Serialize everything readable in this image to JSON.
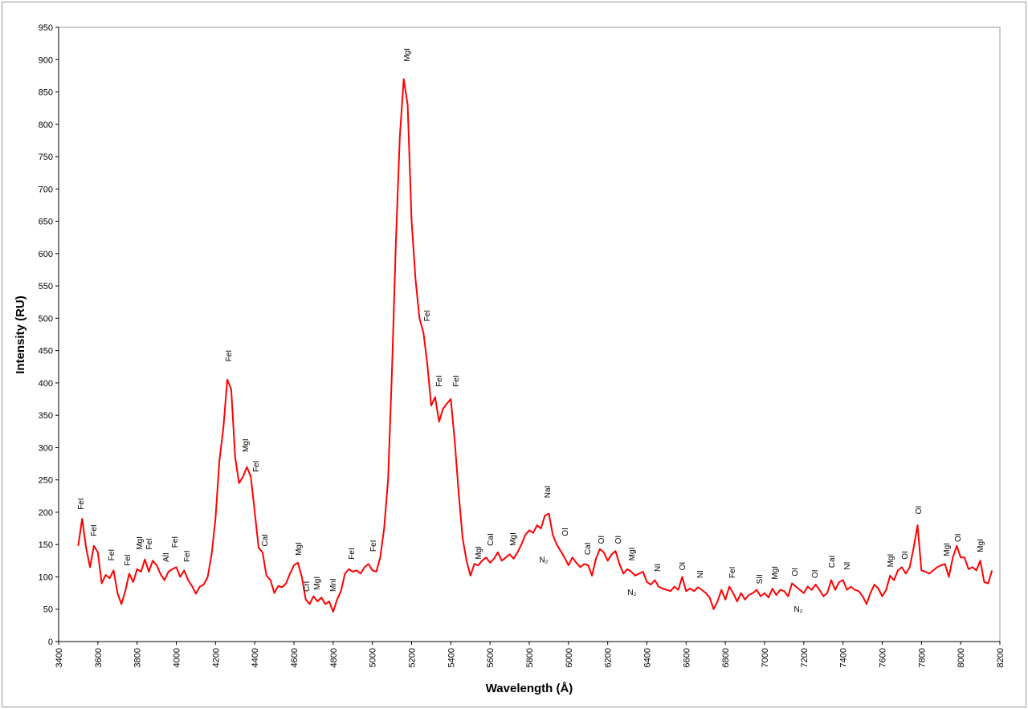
{
  "chart_data": {
    "type": "line",
    "x_label": "Wavelength (Å)",
    "y_label": "Intensity (RU)",
    "color": "#ff0000",
    "x": [
      3500,
      3520,
      3540,
      3560,
      3580,
      3600,
      3620,
      3640,
      3660,
      3680,
      3700,
      3720,
      3740,
      3760,
      3780,
      3800,
      3820,
      3840,
      3860,
      3880,
      3900,
      3920,
      3940,
      3960,
      3980,
      4000,
      4020,
      4040,
      4060,
      4080,
      4100,
      4120,
      4140,
      4160,
      4180,
      4200,
      4220,
      4240,
      4260,
      4280,
      4300,
      4320,
      4340,
      4360,
      4380,
      4400,
      4420,
      4440,
      4460,
      4480,
      4500,
      4520,
      4540,
      4560,
      4580,
      4600,
      4620,
      4640,
      4660,
      4680,
      4700,
      4720,
      4740,
      4760,
      4780,
      4800,
      4820,
      4840,
      4860,
      4880,
      4900,
      4920,
      4940,
      4960,
      4980,
      5000,
      5020,
      5040,
      5060,
      5080,
      5100,
      5120,
      5140,
      5160,
      5180,
      5200,
      5220,
      5240,
      5260,
      5280,
      5300,
      5320,
      5340,
      5360,
      5380,
      5400,
      5420,
      5440,
      5460,
      5480,
      5500,
      5520,
      5540,
      5560,
      5580,
      5600,
      5620,
      5640,
      5660,
      5680,
      5700,
      5720,
      5740,
      5760,
      5780,
      5800,
      5820,
      5840,
      5860,
      5880,
      5900,
      5920,
      5940,
      5960,
      5980,
      6000,
      6020,
      6040,
      6060,
      6080,
      6100,
      6120,
      6140,
      6160,
      6180,
      6200,
      6220,
      6240,
      6260,
      6280,
      6300,
      6320,
      6340,
      6360,
      6380,
      6400,
      6420,
      6440,
      6460,
      6480,
      6500,
      6520,
      6540,
      6560,
      6580,
      6600,
      6620,
      6640,
      6660,
      6680,
      6700,
      6720,
      6740,
      6760,
      6780,
      6800,
      6820,
      6840,
      6860,
      6880,
      6900,
      6920,
      6940,
      6960,
      6980,
      7000,
      7020,
      7040,
      7060,
      7080,
      7100,
      7120,
      7140,
      7160,
      7180,
      7200,
      7220,
      7240,
      7260,
      7280,
      7300,
      7320,
      7340,
      7360,
      7380,
      7400,
      7420,
      7440,
      7460,
      7480,
      7500,
      7520,
      7540,
      7560,
      7580,
      7600,
      7620,
      7640,
      7660,
      7680,
      7700,
      7720,
      7740,
      7760,
      7780,
      7800,
      7820,
      7840,
      7860,
      7880,
      7900,
      7920,
      7940,
      7960,
      7980,
      8000,
      8020,
      8040,
      8060,
      8080,
      8100,
      8120,
      8140,
      8160
    ],
    "values": [
      148,
      190,
      145,
      115,
      148,
      138,
      90,
      103,
      98,
      110,
      75,
      58,
      78,
      105,
      92,
      112,
      108,
      127,
      108,
      125,
      118,
      104,
      95,
      108,
      112,
      115,
      100,
      110,
      95,
      86,
      74,
      85,
      88,
      100,
      135,
      190,
      280,
      330,
      405,
      390,
      285,
      245,
      255,
      270,
      255,
      200,
      145,
      138,
      102,
      95,
      75,
      86,
      84,
      90,
      105,
      118,
      122,
      100,
      65,
      58,
      70,
      62,
      68,
      58,
      62,
      46,
      65,
      78,
      105,
      112,
      108,
      110,
      105,
      115,
      120,
      110,
      108,
      130,
      175,
      250,
      420,
      620,
      780,
      870,
      830,
      650,
      560,
      500,
      478,
      430,
      365,
      378,
      340,
      360,
      368,
      375,
      310,
      230,
      160,
      125,
      102,
      120,
      118,
      125,
      130,
      122,
      128,
      138,
      125,
      130,
      135,
      128,
      138,
      150,
      165,
      172,
      168,
      180,
      175,
      195,
      198,
      165,
      150,
      140,
      130,
      118,
      130,
      122,
      115,
      120,
      118,
      102,
      128,
      143,
      138,
      125,
      135,
      140,
      120,
      105,
      112,
      108,
      102,
      105,
      108,
      92,
      88,
      95,
      85,
      82,
      80,
      78,
      85,
      80,
      100,
      78,
      82,
      78,
      84,
      80,
      75,
      68,
      50,
      62,
      80,
      65,
      85,
      75,
      62,
      75,
      65,
      72,
      75,
      80,
      70,
      75,
      68,
      82,
      72,
      80,
      78,
      70,
      90,
      85,
      80,
      75,
      85,
      80,
      88,
      80,
      70,
      75,
      95,
      80,
      92,
      95,
      80,
      85,
      80,
      78,
      70,
      58,
      75,
      88,
      82,
      70,
      80,
      102,
      95,
      110,
      115,
      105,
      115,
      145,
      180,
      110,
      108,
      105,
      110,
      115,
      118,
      120,
      100,
      130,
      148,
      130,
      130,
      112,
      115,
      110,
      125,
      92,
      90,
      110
    ],
    "xlim": [
      3400,
      8200
    ],
    "xticks": [
      3400,
      3600,
      3800,
      4000,
      4200,
      4400,
      4600,
      4800,
      5000,
      5200,
      5400,
      5600,
      5800,
      6000,
      6200,
      6400,
      6600,
      6800,
      7000,
      7200,
      7400,
      7600,
      7800,
      8000,
      8200
    ],
    "ylim": [
      0,
      950
    ],
    "yticks": [
      0,
      50,
      100,
      150,
      200,
      250,
      300,
      350,
      400,
      450,
      500,
      550,
      600,
      650,
      700,
      750,
      800,
      850,
      900,
      950
    ],
    "annotations": [
      {
        "text": "FeI",
        "x": 3511,
        "y": 204
      },
      {
        "text": "FeI",
        "x": 3576,
        "y": 163
      },
      {
        "text": "FeI",
        "x": 3666,
        "y": 125
      },
      {
        "text": "FeI",
        "x": 3748,
        "y": 117
      },
      {
        "text": "MgI",
        "x": 3810,
        "y": 142
      },
      {
        "text": "FeI",
        "x": 3859,
        "y": 142
      },
      {
        "text": "AlI",
        "x": 3945,
        "y": 123
      },
      {
        "text": "FeI",
        "x": 3990,
        "y": 145
      },
      {
        "text": "FeI",
        "x": 4051,
        "y": 123
      },
      {
        "text": "FeI",
        "x": 4264,
        "y": 433
      },
      {
        "text": "MgI",
        "x": 4350,
        "y": 293
      },
      {
        "text": "FeI",
        "x": 4403,
        "y": 262
      },
      {
        "text": "CaI",
        "x": 4448,
        "y": 147
      },
      {
        "text": "MgI",
        "x": 4620,
        "y": 133
      },
      {
        "text": "CrI",
        "x": 4661,
        "y": 77
      },
      {
        "text": "MgI",
        "x": 4715,
        "y": 80
      },
      {
        "text": "MnI",
        "x": 4797,
        "y": 77
      },
      {
        "text": "FeI",
        "x": 4891,
        "y": 127
      },
      {
        "text": "FeI",
        "x": 5001,
        "y": 139
      },
      {
        "text": "MgI",
        "x": 5173,
        "y": 897
      },
      {
        "text": "FeI",
        "x": 5276,
        "y": 495
      },
      {
        "text": "FeI",
        "x": 5337,
        "y": 394
      },
      {
        "text": "FeI",
        "x": 5423,
        "y": 394
      },
      {
        "text": "MgI",
        "x": 5538,
        "y": 127
      },
      {
        "text": "CaI",
        "x": 5599,
        "y": 148
      },
      {
        "text": "MgI",
        "x": 5714,
        "y": 148
      },
      {
        "text": "NaI",
        "x": 5890,
        "y": 222
      },
      {
        "text": "N₂",
        "x": 5874,
        "y": 127,
        "vertical": false
      },
      {
        "text": "OI",
        "x": 5980,
        "y": 163
      },
      {
        "text": "CaI",
        "x": 6095,
        "y": 134
      },
      {
        "text": "OI",
        "x": 6164,
        "y": 151
      },
      {
        "text": "OI",
        "x": 6250,
        "y": 151
      },
      {
        "text": "MgI",
        "x": 6320,
        "y": 125
      },
      {
        "text": "N₂",
        "x": 6324,
        "y": 77,
        "vertical": false
      },
      {
        "text": "NI",
        "x": 6451,
        "y": 108
      },
      {
        "text": "OI",
        "x": 6578,
        "y": 110
      },
      {
        "text": "NI",
        "x": 6668,
        "y": 98
      },
      {
        "text": "FeI",
        "x": 6832,
        "y": 98
      },
      {
        "text": "SII",
        "x": 6971,
        "y": 89
      },
      {
        "text": "MgI",
        "x": 7049,
        "y": 96
      },
      {
        "text": "OI",
        "x": 7151,
        "y": 101
      },
      {
        "text": "N₂",
        "x": 7172,
        "y": 51,
        "vertical": false
      },
      {
        "text": "OI",
        "x": 7254,
        "y": 98
      },
      {
        "text": "CaI",
        "x": 7340,
        "y": 114
      },
      {
        "text": "NI",
        "x": 7418,
        "y": 111
      },
      {
        "text": "MgI",
        "x": 7639,
        "y": 115
      },
      {
        "text": "OI",
        "x": 7713,
        "y": 127
      },
      {
        "text": "OI",
        "x": 7782,
        "y": 197
      },
      {
        "text": "MgI",
        "x": 7926,
        "y": 132
      },
      {
        "text": "OI",
        "x": 7983,
        "y": 154
      },
      {
        "text": "MgI",
        "x": 8098,
        "y": 138
      }
    ]
  }
}
